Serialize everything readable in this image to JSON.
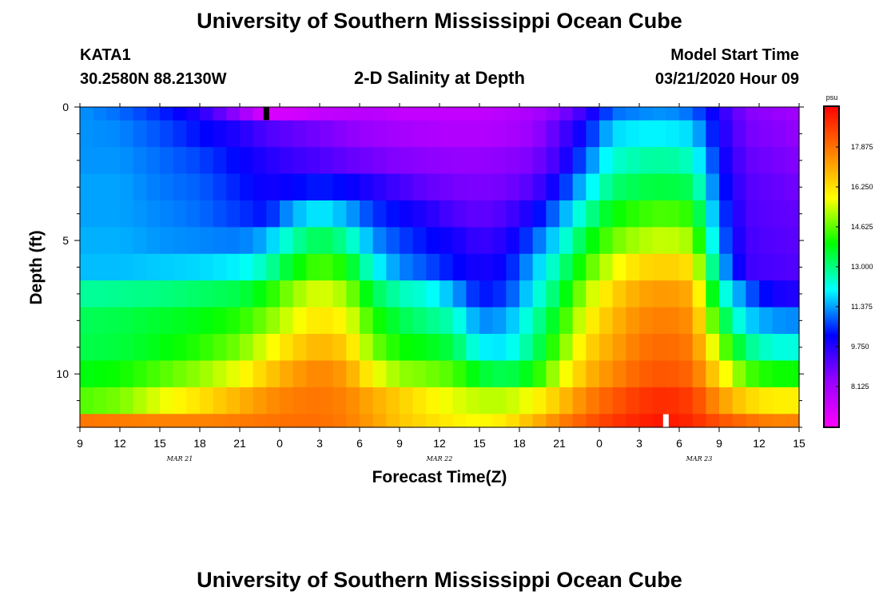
{
  "header": {
    "title": "University of Southern Mississippi Ocean Cube",
    "station": "KATA1",
    "coords": "30.2580N 88.2130W",
    "subtitle": "2-D Salinity at Depth",
    "model_label": "Model Start Time",
    "model_time": "03/21/2020 Hour 09",
    "footer_title": "University of Southern Mississippi Ocean Cube"
  },
  "chart_data": {
    "type": "heatmap",
    "title": "2-D Salinity at Depth",
    "xlabel": "Forecast Time(Z)",
    "ylabel": "Depth (ft)",
    "x_ticks": [
      "9",
      "12",
      "15",
      "18",
      "21",
      "0",
      "3",
      "6",
      "9",
      "12",
      "15",
      "18",
      "21",
      "0",
      "3",
      "6",
      "9",
      "12",
      "15"
    ],
    "x_hours": [
      0,
      3,
      6,
      9,
      12,
      15,
      18,
      21,
      24,
      27,
      30,
      33,
      36,
      39,
      42,
      45,
      48,
      51,
      54
    ],
    "date_labels": [
      {
        "label": "MAR 21",
        "hour": 7.5
      },
      {
        "label": "MAR 22",
        "hour": 27
      },
      {
        "label": "MAR 23",
        "hour": 46.5
      }
    ],
    "y_ticks": [
      "0",
      "5",
      "10"
    ],
    "y_tick_values": [
      0,
      5,
      10
    ],
    "depth_range_ft": [
      0,
      12
    ],
    "time_range_hours": [
      0,
      54
    ],
    "time_step_hours": 1,
    "depth_step_ft": 1,
    "colorbar": {
      "unit": "psu",
      "min": 6.5,
      "max": 19.5,
      "tick_labels": [
        "8.125",
        "9.750",
        "11.375",
        "13.000",
        "14.625",
        "16.250",
        "17.875"
      ],
      "tick_values": [
        8.125,
        9.75,
        11.375,
        13.0,
        14.625,
        16.25,
        17.875
      ],
      "colors": [
        "#ff00ff",
        "#9900ff",
        "#0000ff",
        "#00ffff",
        "#00ff00",
        "#ffff00",
        "#ff8000",
        "#ff0000"
      ]
    },
    "markers": [
      {
        "name": "top",
        "hour": 14,
        "depth_ft": 0.25,
        "color": "#000000"
      },
      {
        "name": "bottom",
        "hour": 44,
        "depth_ft": 11.75,
        "color": "#ffffff"
      }
    ],
    "salinity_keyframes_psu": {
      "hours": [
        0,
        3,
        6,
        9,
        12,
        14,
        16,
        18,
        20,
        22,
        24,
        26,
        28,
        30,
        32,
        34,
        36,
        38,
        40,
        42,
        44,
        46,
        48,
        50,
        52,
        54
      ],
      "rows": [
        [
          11.3,
          11.0,
          10.5,
          9.8,
          8.3,
          7.2,
          7.3,
          7.6,
          7.7,
          7.8,
          7.6,
          7.6,
          7.6,
          7.6,
          7.8,
          8.0,
          8.6,
          9.6,
          11.0,
          11.2,
          11.3,
          11.0,
          9.8,
          8.6,
          8.4,
          8.2
        ],
        [
          11.3,
          11.2,
          10.8,
          10.3,
          9.8,
          9.3,
          9.0,
          8.8,
          8.5,
          8.3,
          8.1,
          8.0,
          7.9,
          7.9,
          8.0,
          8.3,
          9.2,
          10.3,
          11.8,
          12.0,
          12.0,
          11.8,
          10.0,
          8.8,
          8.6,
          8.4
        ],
        [
          11.3,
          11.3,
          11.0,
          10.7,
          10.2,
          9.8,
          9.5,
          9.3,
          9.0,
          8.8,
          8.6,
          8.5,
          8.4,
          8.4,
          8.5,
          8.7,
          9.5,
          11.0,
          12.4,
          12.7,
          12.8,
          12.5,
          10.3,
          9.0,
          8.8,
          8.6
        ],
        [
          11.4,
          11.4,
          11.1,
          10.9,
          10.4,
          10.0,
          10.2,
          10.4,
          10.2,
          9.8,
          9.4,
          9.0,
          8.8,
          8.7,
          8.8,
          9.2,
          10.3,
          11.8,
          13.1,
          13.4,
          13.5,
          13.3,
          10.6,
          9.2,
          9.0,
          8.8
        ],
        [
          11.4,
          11.4,
          11.2,
          11.0,
          10.6,
          10.3,
          11.5,
          12.0,
          11.5,
          10.6,
          10.2,
          9.8,
          9.3,
          9.0,
          9.3,
          10.0,
          11.2,
          12.7,
          13.9,
          14.3,
          14.5,
          14.2,
          10.9,
          9.3,
          9.1,
          9.0
        ],
        [
          11.5,
          11.5,
          11.3,
          11.2,
          11.1,
          11.5,
          12.7,
          13.4,
          12.8,
          11.3,
          10.7,
          10.3,
          10.0,
          9.5,
          9.8,
          10.8,
          12.0,
          13.6,
          14.7,
          15.2,
          15.4,
          15.1,
          11.2,
          9.4,
          9.2,
          9.1
        ],
        [
          11.6,
          11.6,
          11.7,
          11.8,
          12.0,
          12.6,
          13.8,
          14.5,
          14.0,
          12.2,
          11.2,
          10.8,
          10.3,
          9.9,
          10.2,
          11.5,
          12.8,
          14.4,
          15.6,
          16.3,
          16.5,
          16.2,
          11.8,
          9.5,
          9.3,
          9.2
        ],
        [
          12.8,
          12.9,
          13.0,
          13.2,
          13.4,
          14.0,
          15.0,
          15.6,
          15.1,
          13.4,
          12.6,
          12.3,
          11.5,
          10.3,
          10.6,
          12.0,
          13.4,
          15.2,
          16.4,
          17.1,
          17.3,
          17.0,
          12.7,
          11.0,
          10.0,
          9.8
        ],
        [
          13.3,
          13.4,
          13.6,
          13.8,
          14.2,
          14.8,
          15.6,
          16.2,
          15.8,
          14.2,
          13.4,
          13.0,
          12.6,
          11.2,
          11.4,
          12.6,
          14.0,
          15.8,
          16.8,
          17.5,
          17.7,
          17.4,
          13.8,
          11.8,
          11.3,
          11.2
        ],
        [
          13.4,
          13.5,
          13.8,
          14.2,
          14.8,
          15.6,
          16.4,
          16.9,
          16.5,
          14.8,
          14.0,
          13.8,
          13.4,
          12.0,
          11.9,
          13.0,
          14.6,
          16.3,
          17.1,
          17.8,
          18.0,
          17.7,
          15.0,
          13.0,
          12.3,
          12.3
        ],
        [
          13.8,
          14.0,
          14.5,
          15.0,
          15.7,
          16.5,
          17.2,
          17.6,
          17.2,
          15.8,
          15.0,
          14.8,
          14.5,
          13.6,
          13.3,
          13.9,
          15.4,
          16.8,
          17.5,
          18.1,
          18.3,
          18.0,
          16.2,
          14.5,
          14.0,
          14.0
        ],
        [
          14.5,
          14.8,
          15.6,
          16.2,
          16.9,
          17.4,
          17.7,
          17.8,
          17.6,
          17.0,
          16.5,
          16.0,
          15.6,
          15.3,
          15.3,
          15.8,
          16.6,
          17.6,
          18.2,
          18.7,
          18.9,
          18.6,
          17.3,
          16.4,
          16.0,
          16.0
        ],
        [
          17.8,
          17.7,
          17.6,
          17.6,
          17.7,
          17.8,
          17.9,
          17.9,
          17.7,
          17.2,
          16.6,
          16.3,
          16.0,
          15.8,
          16.1,
          16.8,
          17.6,
          18.2,
          18.7,
          19.0,
          19.2,
          18.9,
          18.3,
          17.9,
          17.6,
          17.6
        ]
      ]
    }
  }
}
